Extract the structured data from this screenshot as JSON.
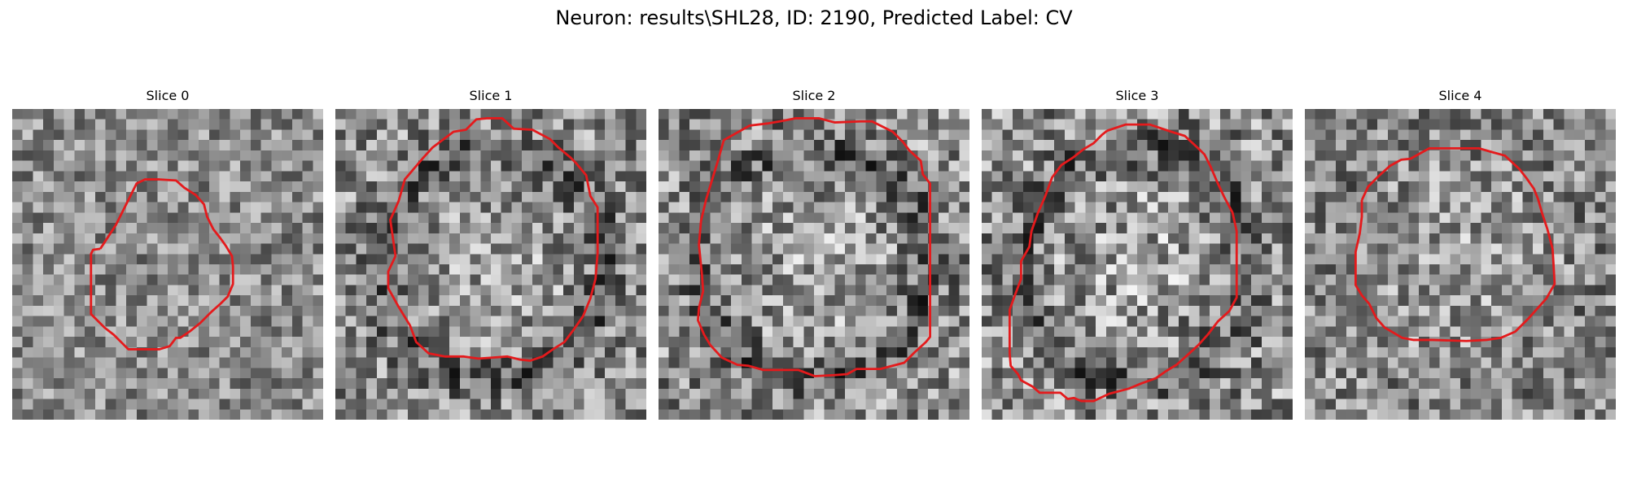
{
  "figure": {
    "title": "Neuron: results\\SHL28, ID: 2190, Predicted Label: CV"
  },
  "colors": {
    "contour": "#e41a1c",
    "background": "#ffffff"
  },
  "panels": [
    {
      "title": "Slice 0",
      "seed": 11,
      "contrast": 0.95,
      "pattern": "uniform-noise"
    },
    {
      "title": "Slice 1",
      "seed": 23,
      "contrast": 1.15,
      "pattern": "dark-ring"
    },
    {
      "title": "Slice 2",
      "seed": 37,
      "contrast": 1.2,
      "pattern": "dark-ring"
    },
    {
      "title": "Slice 3",
      "seed": 41,
      "contrast": 1.25,
      "pattern": "dark-ring"
    },
    {
      "title": "Slice 4",
      "seed": 53,
      "contrast": 1.1,
      "pattern": "light-center"
    }
  ]
}
